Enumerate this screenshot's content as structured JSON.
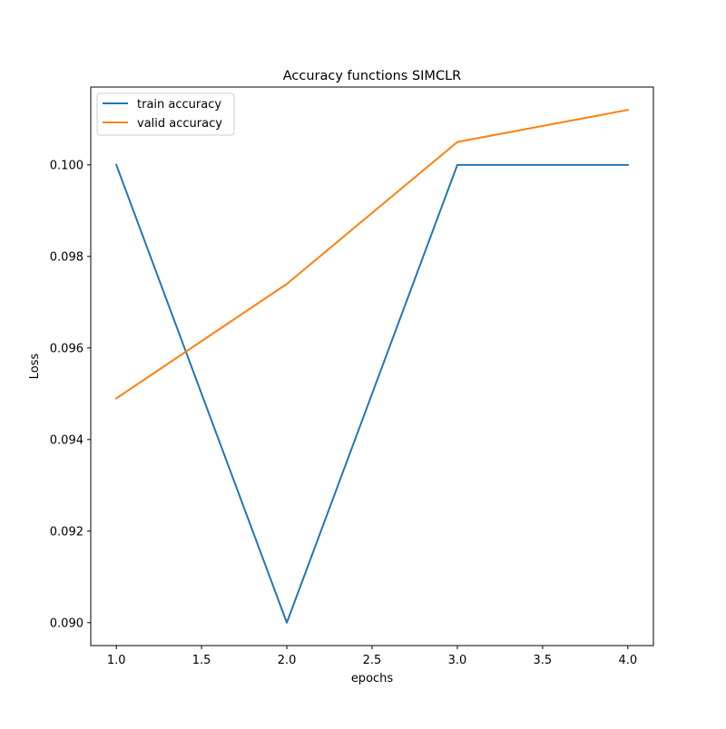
{
  "chart_data": {
    "type": "line",
    "title": "Accuracy functions SIMCLR",
    "xlabel": "epochs",
    "ylabel": "Loss",
    "xlim": [
      0.85,
      4.15
    ],
    "ylim": [
      0.0895,
      0.1017
    ],
    "x": [
      1.0,
      2.0,
      3.0,
      4.0
    ],
    "xticks": [
      1.0,
      1.5,
      2.0,
      2.5,
      3.0,
      3.5,
      4.0
    ],
    "xtick_labels": [
      "1.0",
      "1.5",
      "2.0",
      "2.5",
      "3.0",
      "3.5",
      "4.0"
    ],
    "yticks": [
      0.09,
      0.092,
      0.094,
      0.096,
      0.098,
      0.1
    ],
    "ytick_labels": [
      "0.090",
      "0.092",
      "0.094",
      "0.096",
      "0.098",
      "0.100"
    ],
    "grid": false,
    "legend_position": "upper-left",
    "series": [
      {
        "name": "train accuracy",
        "color": "#1f77b4",
        "values": [
          0.1,
          0.09,
          0.1,
          0.1
        ]
      },
      {
        "name": "valid accuracy",
        "color": "#ff7f0e",
        "values": [
          0.0949,
          0.0974,
          0.1005,
          0.1012
        ]
      }
    ]
  }
}
